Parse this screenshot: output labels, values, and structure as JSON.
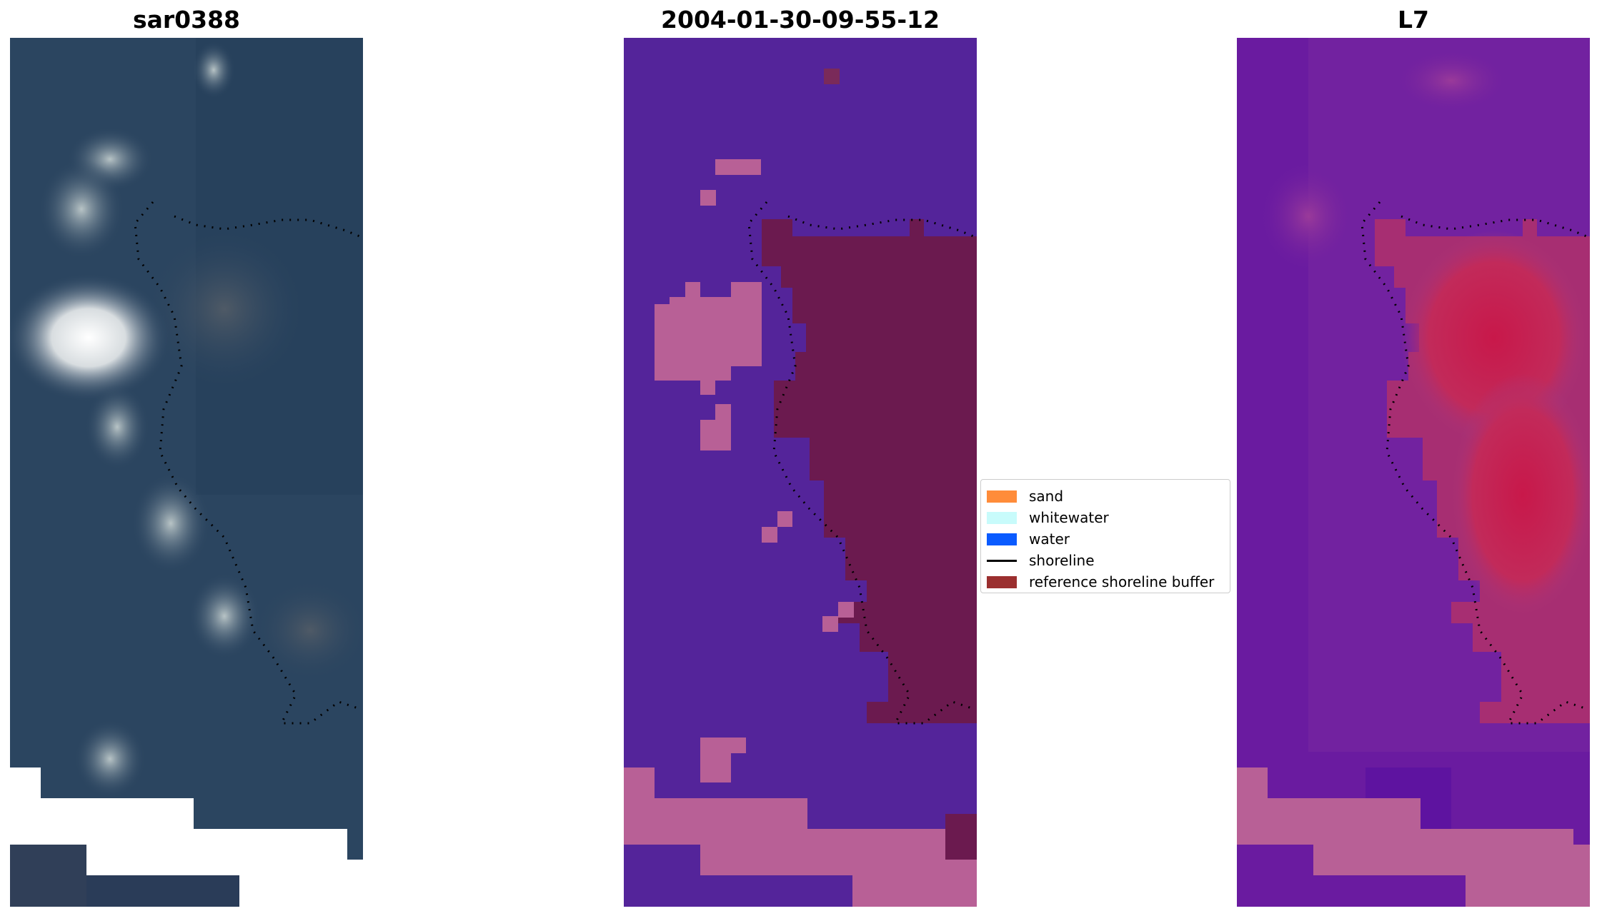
{
  "panels": [
    {
      "title": "sar0388"
    },
    {
      "title": "2004-01-30-09-55-12"
    },
    {
      "title": "L7"
    }
  ],
  "legend": {
    "items": [
      {
        "label": "sand",
        "color": "#ff8c3a"
      },
      {
        "label": "whitewater",
        "color": "#c8fbfb"
      },
      {
        "label": "water",
        "color": "#0a5bff"
      },
      {
        "label": "shoreline",
        "color": "#000000"
      },
      {
        "label": "reference shoreline buffer",
        "color": "#9b2f2f"
      }
    ]
  },
  "colors": {
    "rgb_base": "#2c4560",
    "class_water": "#54249a",
    "class_sand": "#b86096",
    "class_buffer": "#6b1a4f",
    "ndwi_low": "#6a1ba0",
    "ndwi_high": "#c8184a"
  }
}
